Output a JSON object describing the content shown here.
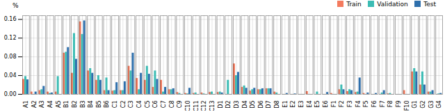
{
  "chart_data": {
    "type": "bar",
    "categories": [
      "A1",
      "A2",
      "A3",
      "A4",
      "A5",
      "B1",
      "B2",
      "B3",
      "B4",
      "B5",
      "B6",
      "C1",
      "C2",
      "C3",
      "C4",
      "C5",
      "C6",
      "C7",
      "C8",
      "C9",
      "C10",
      "C11",
      "C12",
      "C13",
      "D1",
      "D2",
      "D3",
      "D4",
      "D5",
      "D6",
      "D7",
      "D8",
      "E1",
      "E2",
      "E3",
      "E4",
      "E5",
      "E6",
      "F1",
      "F2",
      "F3",
      "F4",
      "F5",
      "F6",
      "F7",
      "F8",
      "F9",
      "F10",
      "G1",
      "G2",
      "G3",
      "G4"
    ],
    "series": [
      {
        "name": "Train",
        "color": "#F47B5E",
        "values": [
          0.032,
          0.005,
          0.008,
          0.005,
          0.005,
          0.088,
          0.045,
          0.155,
          0.05,
          0.03,
          0.008,
          0.007,
          0.008,
          0.06,
          0.034,
          0.03,
          0.015,
          0.03,
          0.01,
          0.004,
          0.002,
          0.002,
          0.003,
          0.004,
          0.004,
          0.0,
          0.065,
          0.015,
          0.007,
          0.01,
          0.012,
          0.005,
          0.0,
          0.0,
          0.0,
          0.006,
          0.0,
          0.0,
          0.002,
          0.01,
          0.006,
          0.004,
          0.002,
          0.0,
          0.0,
          0.001,
          0.0,
          0.008,
          0.048,
          0.02,
          0.005,
          0.0
        ]
      },
      {
        "name": "Validation",
        "color": "#3CBCB4",
        "values": [
          0.038,
          0.0,
          0.01,
          0.002,
          0.038,
          0.09,
          0.13,
          0.128,
          0.055,
          0.04,
          0.035,
          0.008,
          0.008,
          0.05,
          0.01,
          0.06,
          0.05,
          0.005,
          0.01,
          0.002,
          0.001,
          0.003,
          0.001,
          0.005,
          0.005,
          0.03,
          0.04,
          0.018,
          0.01,
          0.01,
          0.012,
          0.003,
          0.0,
          0.0,
          0.0,
          0.0,
          0.005,
          0.0,
          0.0,
          0.02,
          0.01,
          0.005,
          0.0,
          0.0,
          0.003,
          0.002,
          0.0,
          0.0,
          0.055,
          0.048,
          0.005,
          0.001
        ]
      },
      {
        "name": "Test",
        "color": "#2E6FAC",
        "values": [
          0.031,
          0.005,
          0.017,
          0.003,
          0.0,
          0.1,
          0.075,
          0.157,
          0.045,
          0.03,
          0.008,
          0.025,
          0.027,
          0.088,
          0.045,
          0.043,
          0.032,
          0.015,
          0.012,
          0.0,
          0.013,
          0.0,
          0.0,
          0.0,
          0.003,
          0.0,
          0.047,
          0.013,
          0.013,
          0.012,
          0.012,
          0.0,
          0.002,
          0.001,
          0.0,
          0.0,
          0.0,
          0.004,
          0.0,
          0.01,
          0.008,
          0.035,
          0.003,
          0.002,
          0.008,
          0.0,
          0.0,
          0.0,
          0.048,
          0.02,
          0.008,
          0.002
        ]
      }
    ],
    "ylabel": "%",
    "ylim": [
      0,
      0.168
    ],
    "yticks": [
      {
        "value": 0,
        "label": "0.00"
      },
      0.04,
      0.08,
      0.12,
      0.16
    ],
    "grid": true,
    "legend": "upper right"
  }
}
